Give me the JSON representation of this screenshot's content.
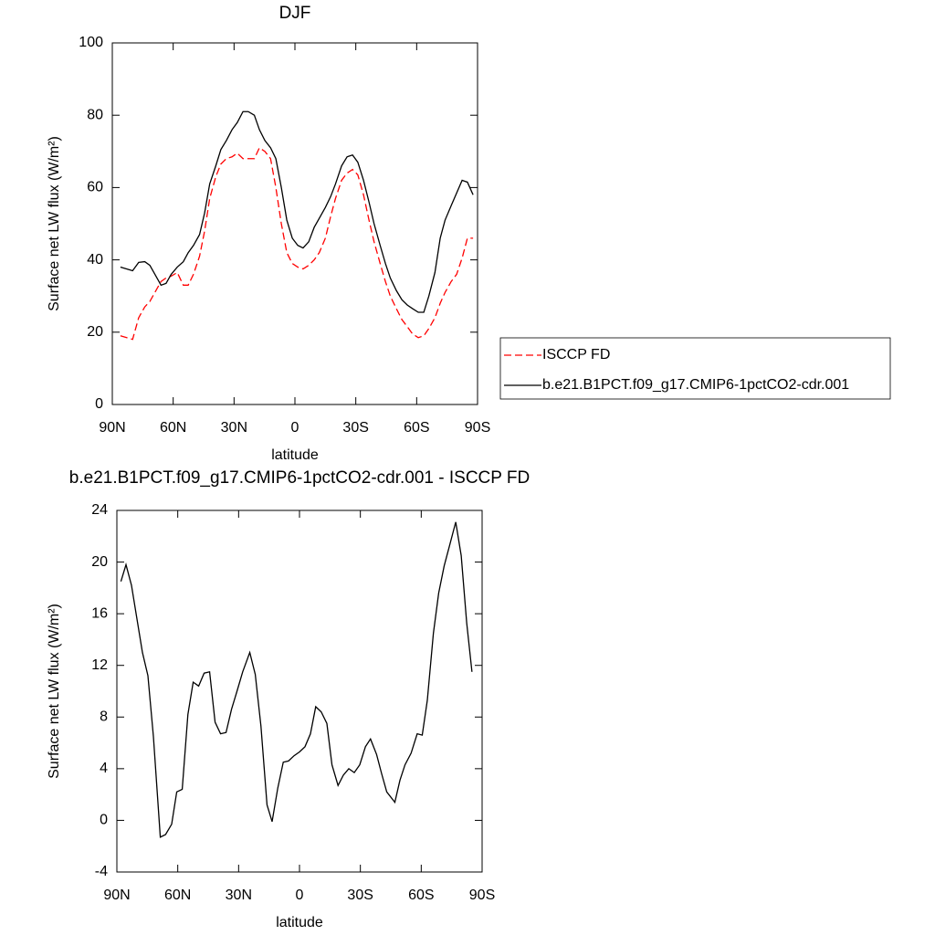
{
  "chart_data": [
    {
      "type": "line",
      "title": "DJF",
      "xlabel": "latitude",
      "ylabel": "Surface net LW flux (W/m²)",
      "x": [
        86,
        80,
        77,
        74,
        71.5,
        69,
        66,
        63.5,
        61,
        58,
        55,
        52.6,
        50,
        47,
        44.5,
        42,
        39,
        36.5,
        33.8,
        31,
        28.4,
        25.6,
        23,
        20,
        17.5,
        14.8,
        12,
        9.4,
        6.7,
        4,
        1.3,
        -1.4,
        -4,
        -6.8,
        -9.5,
        -12,
        -15,
        -17.6,
        -20,
        -23,
        -25.7,
        -28.4,
        -31,
        -33.8,
        -36.5,
        -39,
        -42,
        -44.6,
        -47,
        -50,
        -52.7,
        -55.4,
        -58,
        -60.8,
        -63.5,
        -66,
        -69,
        -71.6,
        -74,
        -77,
        -79.7,
        -82.4,
        -85,
        -87.8
      ],
      "series": [
        {
          "name": "ISCCP FD",
          "color": "#ff0000",
          "dash": true,
          "values": [
            19,
            18,
            24,
            27,
            28.5,
            31,
            34,
            35,
            35.5,
            36.5,
            33,
            33,
            36,
            41,
            48,
            57,
            63,
            66.5,
            68,
            68.5,
            69.5,
            68,
            68,
            68,
            71,
            70,
            68,
            60,
            50,
            42,
            39,
            38,
            37.5,
            38.5,
            40,
            42,
            46,
            52,
            57,
            62,
            64,
            65,
            63.5,
            58,
            51,
            45,
            39,
            34,
            30,
            26.5,
            23.5,
            21.5,
            19.5,
            18.5,
            19,
            21,
            24,
            28,
            31,
            34,
            36,
            40.5,
            46,
            46
          ]
        },
        {
          "name": "b.e21.B1PCT.f09_g17.CMIP6-1pctCO2-cdr.001",
          "color": "#000000",
          "dash": false,
          "values": [
            38,
            37,
            39.3,
            39.5,
            38.5,
            36,
            33,
            33.5,
            36,
            38,
            39.5,
            42,
            44,
            47,
            53,
            61,
            66,
            70.5,
            73,
            76,
            78,
            81,
            81,
            80,
            76,
            73,
            71,
            68,
            60,
            51,
            46,
            44,
            43.3,
            45,
            49,
            51.5,
            54.5,
            57.5,
            61,
            66,
            68.5,
            69,
            67,
            62,
            56,
            50,
            44,
            39,
            35,
            31.5,
            29,
            27.5,
            26.5,
            25.5,
            25.5,
            30,
            36.5,
            46,
            51,
            55,
            58.5,
            62,
            61.5,
            58
          ]
        }
      ],
      "xlim": [
        90,
        -90
      ],
      "xticks": [
        {
          "value": 90,
          "label": "90N"
        },
        {
          "value": 60,
          "label": "60N"
        },
        {
          "value": 30,
          "label": "30N"
        },
        0,
        {
          "value": -30,
          "label": "30S"
        },
        {
          "value": -60,
          "label": "60S"
        },
        {
          "value": -90,
          "label": "90S"
        }
      ],
      "ylim": [
        0,
        100
      ],
      "yticks": [
        0,
        20,
        40,
        60,
        80,
        100
      ],
      "legend": "right"
    },
    {
      "type": "line",
      "title": "b.e21.B1PCT.f09_g17.CMIP6-1pctCO2-cdr.001 - ISCCP FD",
      "xlabel": "latitude",
      "ylabel": "Surface net LW flux (W/m²)",
      "x": [
        88,
        85.5,
        82.8,
        80,
        77.4,
        74.7,
        72,
        68.6,
        66,
        63,
        60.5,
        57.8,
        55,
        52.4,
        49.7,
        47,
        44.3,
        41.6,
        38.9,
        36.2,
        33.5,
        30.8,
        28,
        24.5,
        21.8,
        19,
        16,
        13.5,
        10.7,
        8,
        5.4,
        2.7,
        0,
        -2.7,
        -5.4,
        -8,
        -10.7,
        -13.5,
        -16,
        -19,
        -21.6,
        -24.3,
        -27,
        -29.7,
        -32.5,
        -35,
        -38,
        -40.5,
        -43,
        -47,
        -49.5,
        -52,
        -55,
        -58,
        -60.5,
        -63,
        -66,
        -68.6,
        -71.3,
        -74,
        -77,
        -79.7,
        -82.4,
        -85
      ],
      "series": [
        {
          "color": "#000000",
          "dash": false,
          "values": [
            18.5,
            19.8,
            18.2,
            15.5,
            13,
            11.2,
            6.5,
            -1.3,
            -1.1,
            -0.3,
            2.2,
            2.4,
            8.2,
            10.7,
            10.4,
            11.4,
            11.5,
            7.6,
            6.7,
            6.8,
            8.6,
            10,
            11.5,
            13,
            11.3,
            7.3,
            1.2,
            -0.1,
            2.5,
            4.5,
            4.6,
            5,
            5.3,
            5.7,
            6.7,
            8.8,
            8.4,
            7.5,
            4.3,
            2.7,
            3.5,
            4,
            3.7,
            4.3,
            5.7,
            6.3,
            5.1,
            3.6,
            2.2,
            1.4,
            3.1,
            4.3,
            5.2,
            6.7,
            6.6,
            9.3,
            14.5,
            17.6,
            19.7,
            21.3,
            23.1,
            20.5,
            15.3,
            11.5
          ]
        }
      ],
      "xlim": [
        90,
        -90
      ],
      "xticks": [
        {
          "value": 90,
          "label": "90N"
        },
        {
          "value": 60,
          "label": "60N"
        },
        {
          "value": 30,
          "label": "30N"
        },
        0,
        {
          "value": -30,
          "label": "30S"
        },
        {
          "value": -60,
          "label": "60S"
        },
        {
          "value": -90,
          "label": "90S"
        }
      ],
      "ylim": [
        -4,
        24
      ],
      "yticks": [
        -4,
        0,
        4,
        8,
        12,
        16,
        20,
        24
      ]
    }
  ]
}
